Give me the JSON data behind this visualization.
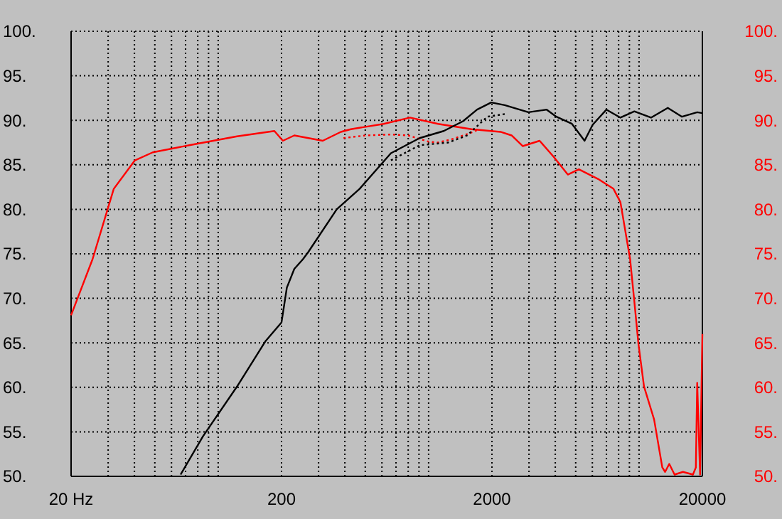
{
  "chart_data": {
    "type": "line",
    "log": "x",
    "grid": true,
    "xlim": [
      20,
      20000
    ],
    "xticks": [
      {
        "value": 20,
        "label": "20 Hz"
      },
      {
        "value": 30,
        "label": null
      },
      {
        "value": 40,
        "label": null
      },
      {
        "value": 50,
        "label": null
      },
      {
        "value": 60,
        "label": null
      },
      {
        "value": 70,
        "label": null
      },
      {
        "value": 80,
        "label": null
      },
      {
        "value": 90,
        "label": null
      },
      {
        "value": 100,
        "label": null
      },
      200,
      {
        "value": 300,
        "label": null
      },
      {
        "value": 400,
        "label": null
      },
      {
        "value": 500,
        "label": null
      },
      {
        "value": 600,
        "label": null
      },
      {
        "value": 700,
        "label": null
      },
      {
        "value": 800,
        "label": null
      },
      {
        "value": 900,
        "label": null
      },
      {
        "value": 1000,
        "label": null
      },
      2000,
      {
        "value": 3000,
        "label": null
      },
      {
        "value": 4000,
        "label": null
      },
      {
        "value": 5000,
        "label": null
      },
      {
        "value": 6000,
        "label": null
      },
      {
        "value": 7000,
        "label": null
      },
      {
        "value": 8000,
        "label": null
      },
      {
        "value": 9000,
        "label": null
      },
      {
        "value": 10000,
        "label": null
      },
      20000
    ],
    "ylim": [
      50,
      100
    ],
    "yticks": [
      {
        "value": 50,
        "label": "50."
      },
      {
        "value": 55,
        "label": "55."
      },
      {
        "value": 60,
        "label": "60."
      },
      {
        "value": 65,
        "label": "65."
      },
      {
        "value": 70,
        "label": "70."
      },
      {
        "value": 75,
        "label": "75."
      },
      {
        "value": 80,
        "label": "80."
      },
      {
        "value": 85,
        "label": "85."
      },
      {
        "value": 90,
        "label": "90."
      },
      {
        "value": 95,
        "label": "95."
      },
      {
        "value": 100,
        "label": "100."
      }
    ],
    "y2lim": [
      50,
      100
    ],
    "y2ticks": [
      {
        "value": 50,
        "label": "50."
      },
      {
        "value": 55,
        "label": "55."
      },
      {
        "value": 60,
        "label": "60."
      },
      {
        "value": 65,
        "label": "65."
      },
      {
        "value": 70,
        "label": "70."
      },
      {
        "value": 75,
        "label": "75."
      },
      {
        "value": 80,
        "label": "80."
      },
      {
        "value": 85,
        "label": "85."
      },
      {
        "value": 90,
        "label": "90."
      },
      {
        "value": 95,
        "label": "95."
      },
      {
        "value": 100,
        "label": "100."
      }
    ],
    "series": [
      {
        "color": "#ff0000",
        "line_style": "solid",
        "x": [
          20,
          25.3,
          31.9,
          40.2,
          48.9,
          72.9,
          123,
          185,
          203,
          230,
          314,
          383,
          427,
          612,
          816,
          1109,
          1601,
          2196,
          2480,
          2804,
          3369,
          3927,
          4587,
          5175,
          6397,
          7561,
          8158,
          9070,
          9495,
          9933,
          10560,
          11790,
          12900,
          13300,
          13920,
          14750,
          16170,
          18040,
          18620,
          18900,
          19500,
          20000
        ],
        "values": [
          68.1,
          74.4,
          82.3,
          85.5,
          86.4,
          87.2,
          88.2,
          88.8,
          87.7,
          88.3,
          87.7,
          88.7,
          89.0,
          89.6,
          90.3,
          89.6,
          89.0,
          88.7,
          88.3,
          87.1,
          87.7,
          85.9,
          83.9,
          84.5,
          83.4,
          82.3,
          80.8,
          74.4,
          69.7,
          64.9,
          60.1,
          56.4,
          51.0,
          50.5,
          51.4,
          50.2,
          50.5,
          50.2,
          51.0,
          60.5,
          50.2,
          66.0
        ]
      },
      {
        "color": "#ff0000",
        "line_style": "dotted",
        "x": [
          394,
          500,
          662,
          800,
          1000,
          1109,
          1300,
          1550,
          1700
        ],
        "values": [
          88.0,
          88.3,
          88.4,
          88.3,
          87.6,
          87.5,
          87.9,
          88.5,
          88.9
        ]
      },
      {
        "color": "#000000",
        "line_style": "solid",
        "x": [
          66.3,
          84.7,
          123,
          168,
          200,
          212,
          230,
          253,
          268,
          366,
          470,
          662,
          906,
          1180,
          1457,
          1700,
          1984,
          2300,
          2980,
          3640,
          4047,
          4800,
          5510,
          6020,
          7000,
          8160,
          9500,
          11400,
          13700,
          16000,
          18900,
          20000
        ],
        "values": [
          50.2,
          54.5,
          60.1,
          65.2,
          67.3,
          71.2,
          73.3,
          74.4,
          75.2,
          80.0,
          82.3,
          86.3,
          88.0,
          88.8,
          89.9,
          91.2,
          92.0,
          91.7,
          90.9,
          91.2,
          90.4,
          89.6,
          87.7,
          89.5,
          91.2,
          90.3,
          91.0,
          90.3,
          91.4,
          90.4,
          90.9,
          90.8
        ]
      },
      {
        "color": "#000000",
        "line_style": "dotted",
        "x": [
          662,
          906,
          1240,
          1524,
          1900,
          2300
        ],
        "values": [
          85.5,
          87.2,
          87.5,
          88.3,
          90.4,
          90.7
        ]
      }
    ]
  }
}
